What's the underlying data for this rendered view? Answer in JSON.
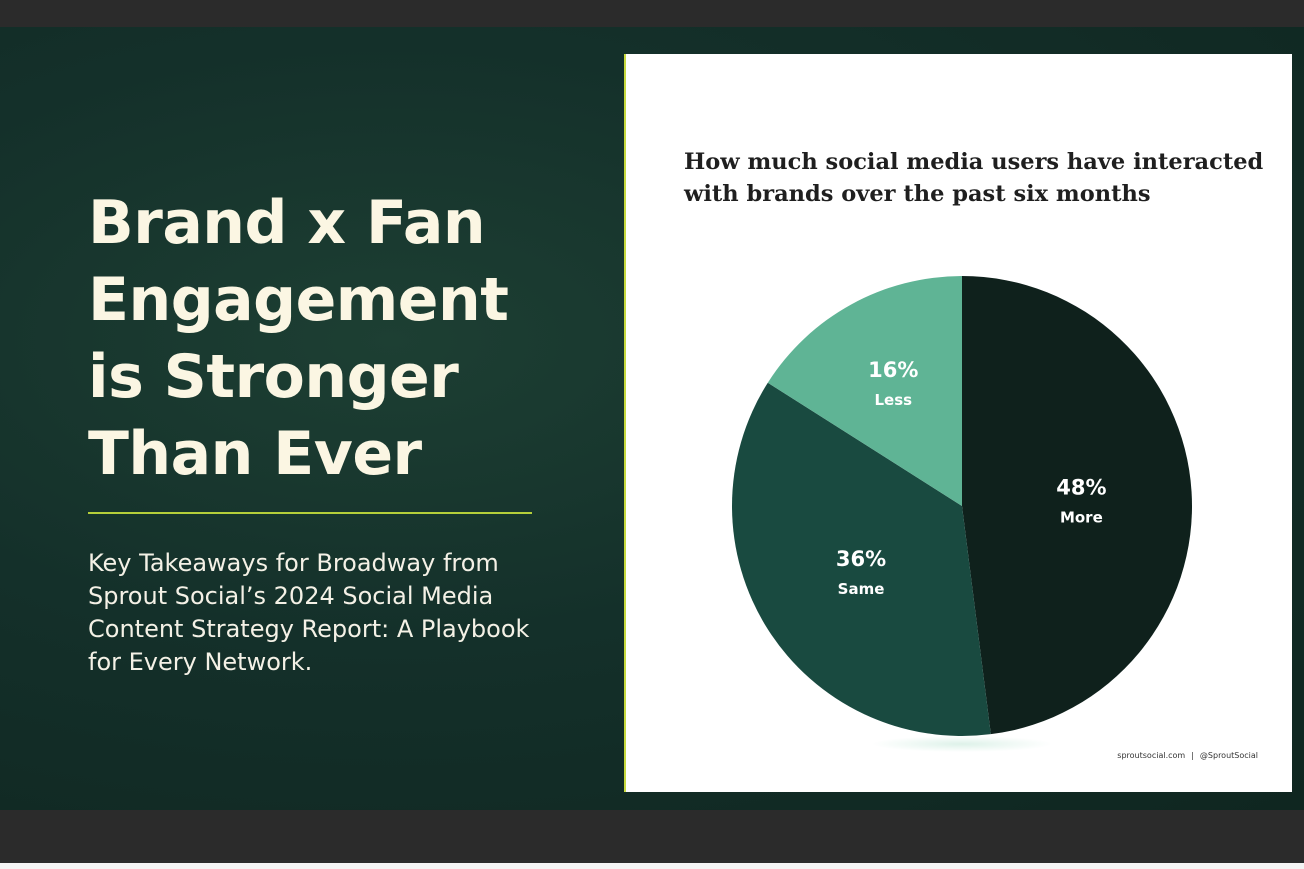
{
  "slide": {
    "headline_lines": [
      "Brand x Fan",
      "Engagement",
      "is Stronger",
      "Than Ever"
    ],
    "subtitle_lines": [
      "Key Takeaways for Broadway from",
      "Sprout Social’s 2024 Social Media",
      "Content Strategy Report: A Playbook",
      "for Every Network."
    ],
    "accent_color": "#b5cf3a",
    "background_color": "#14302a"
  },
  "card": {
    "footer_site": "sproutsocial.com",
    "footer_separator": "|",
    "footer_handle": "@SproutSocial"
  },
  "chart_data": {
    "type": "pie",
    "title_lines": [
      "How much social media users have interacted",
      "with brands over the past six months"
    ],
    "start_angle_deg": 0,
    "direction": "clockwise",
    "slices": [
      {
        "label": "More",
        "value": 48,
        "display": "48%",
        "color": "#0f211c"
      },
      {
        "label": "Same",
        "value": 36,
        "display": "36%",
        "color": "#194a40"
      },
      {
        "label": "Less",
        "value": 16,
        "display": "16%",
        "color": "#5fb495"
      }
    ]
  }
}
